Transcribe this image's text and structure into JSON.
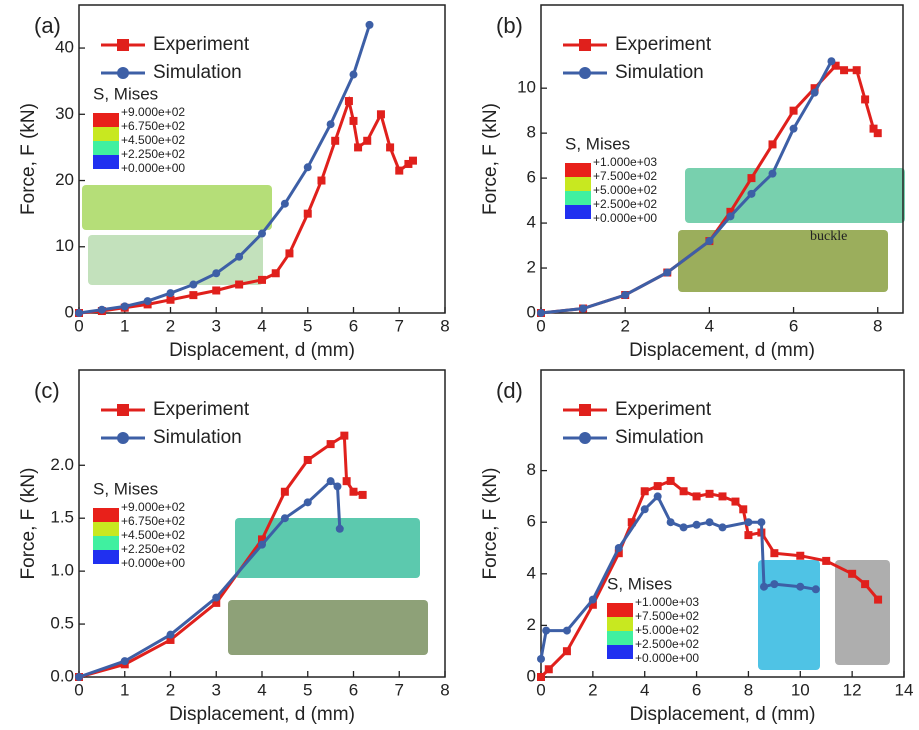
{
  "chart_data": [
    {
      "type": "line",
      "title": "(a)",
      "xlabel": "Displacement, d (mm)",
      "ylabel": "Force, F (kN)",
      "xlim": [
        0,
        8
      ],
      "xticks": [
        0,
        1,
        2,
        3,
        4,
        5,
        6,
        7,
        8
      ],
      "ylim": [
        0,
        46.5
      ],
      "yticks": [
        0,
        10,
        20,
        30,
        40
      ],
      "series": [
        {
          "name": "Experiment",
          "color": "#e0201c",
          "marker": "square",
          "x": [
            0,
            0.5,
            1,
            1.5,
            2,
            2.5,
            3,
            3.5,
            4,
            4.3,
            4.6,
            5,
            5.3,
            5.6,
            5.9,
            6.0,
            6.1,
            6.3,
            6.6,
            6.8,
            7.0,
            7.2,
            7.3
          ],
          "values": [
            0,
            0.3,
            0.8,
            1.3,
            2,
            2.7,
            3.4,
            4.3,
            5,
            6,
            9,
            15,
            20,
            26,
            32,
            29,
            25,
            26,
            30,
            25,
            21.5,
            22.5,
            23
          ]
        },
        {
          "name": "Simulation",
          "color": "#3d5fa6",
          "marker": "circle",
          "x": [
            0,
            0.5,
            1,
            1.5,
            2,
            2.5,
            3,
            3.5,
            4,
            4.5,
            5,
            5.5,
            6,
            6.35
          ],
          "values": [
            0,
            0.5,
            1,
            1.8,
            3,
            4.3,
            6,
            8.5,
            12,
            16.5,
            22,
            28.5,
            36,
            43.5
          ]
        }
      ],
      "inset": {
        "title": "S, Mises",
        "labels": [
          "+9.000e+02",
          "+6.750e+02",
          "+4.500e+02",
          "+2.250e+02",
          "+0.000e+00"
        ],
        "colors": [
          "#e8201a",
          "#c8e820",
          "#40f0a0",
          "#2030f0"
        ]
      }
    },
    {
      "type": "line",
      "title": "(b)",
      "xlabel": "Displacement, d (mm)",
      "ylabel": "Force, F (kN)",
      "xlim": [
        0,
        8.6
      ],
      "xticks": [
        0,
        2,
        4,
        6,
        8
      ],
      "ylim": [
        0,
        13.7
      ],
      "yticks": [
        0,
        2,
        4,
        6,
        8,
        10
      ],
      "series": [
        {
          "name": "Experiment",
          "color": "#e0201c",
          "marker": "square",
          "x": [
            0,
            1,
            2,
            3,
            4,
            4.5,
            5,
            5.5,
            6,
            6.5,
            7,
            7.2,
            7.5,
            7.7,
            7.9,
            8.0
          ],
          "values": [
            0,
            0.2,
            0.8,
            1.8,
            3.2,
            4.5,
            6,
            7.5,
            9,
            10,
            11,
            10.8,
            10.8,
            9.5,
            8.2,
            8
          ]
        },
        {
          "name": "Simulation",
          "color": "#3d5fa6",
          "marker": "circle",
          "x": [
            0,
            1,
            2,
            3,
            4,
            4.5,
            5,
            5.5,
            6,
            6.5,
            6.9
          ],
          "values": [
            0,
            0.2,
            0.8,
            1.8,
            3.2,
            4.3,
            5.3,
            6.2,
            8.2,
            9.8,
            11.2
          ]
        }
      ],
      "inset": {
        "title": "S, Mises",
        "labels": [
          "+1.000e+03",
          "+7.500e+02",
          "+5.000e+02",
          "+2.500e+02",
          "+0.000e+00"
        ],
        "colors": [
          "#e8201a",
          "#c8e820",
          "#40f0a0",
          "#2030f0"
        ]
      },
      "annotation": "buckle"
    },
    {
      "type": "line",
      "title": "(c)",
      "xlabel": "Displacement, d (mm)",
      "ylabel": "Force, F (kN)",
      "xlim": [
        0,
        8
      ],
      "xticks": [
        0,
        1,
        2,
        3,
        4,
        5,
        6,
        7,
        8
      ],
      "ylim": [
        0,
        2.9
      ],
      "yticks": [
        {
          "value": 0,
          "label": "0.0"
        },
        0.5,
        {
          "value": 1,
          "label": "1.0"
        },
        1.5,
        {
          "value": 2,
          "label": "2.0"
        }
      ],
      "series": [
        {
          "name": "Experiment",
          "color": "#e0201c",
          "marker": "square",
          "x": [
            0,
            1,
            2,
            3,
            4,
            4.5,
            5,
            5.5,
            5.8,
            5.85,
            6,
            6.2
          ],
          "values": [
            0,
            0.12,
            0.35,
            0.7,
            1.3,
            1.75,
            2.05,
            2.2,
            2.28,
            1.85,
            1.75,
            1.72
          ]
        },
        {
          "name": "Simulation",
          "color": "#3d5fa6",
          "marker": "circle",
          "x": [
            0,
            1,
            2,
            3,
            4,
            4.5,
            5,
            5.5,
            5.65,
            5.7
          ],
          "values": [
            0,
            0.15,
            0.4,
            0.75,
            1.25,
            1.5,
            1.65,
            1.85,
            1.8,
            1.4
          ]
        }
      ],
      "inset": {
        "title": "S, Mises",
        "labels": [
          "+9.000e+02",
          "+6.750e+02",
          "+4.500e+02",
          "+2.250e+02",
          "+0.000e+00"
        ],
        "colors": [
          "#e8201a",
          "#c8e820",
          "#40f0a0",
          "#2030f0"
        ]
      }
    },
    {
      "type": "line",
      "title": "(d)",
      "xlabel": "Displacement, d (mm)",
      "ylabel": "Force, F (kN)",
      "xlim": [
        0,
        14
      ],
      "xticks": [
        0,
        2,
        4,
        6,
        8,
        10,
        12,
        14
      ],
      "ylim": [
        0,
        11.9
      ],
      "yticks": [
        0,
        2,
        4,
        6,
        8
      ],
      "series": [
        {
          "name": "Experiment",
          "color": "#e0201c",
          "marker": "square",
          "x": [
            0,
            0.3,
            1,
            2,
            3,
            3.5,
            4,
            4.5,
            5,
            5.5,
            6,
            6.5,
            7,
            7.5,
            7.8,
            8,
            8.5,
            9,
            10,
            11,
            12,
            12.5,
            13
          ],
          "values": [
            0,
            0.3,
            1,
            2.8,
            4.8,
            6,
            7.2,
            7.4,
            7.6,
            7.2,
            7,
            7.1,
            7,
            6.8,
            6.5,
            5.5,
            5.6,
            4.8,
            4.7,
            4.5,
            4,
            3.6,
            3
          ]
        },
        {
          "name": "Simulation",
          "color": "#3d5fa6",
          "marker": "circle",
          "x": [
            0,
            0.2,
            1,
            2,
            3,
            4,
            4.5,
            5,
            5.5,
            6,
            6.5,
            7,
            8,
            8.5,
            8.6,
            9,
            10,
            10.6
          ],
          "values": [
            0.7,
            1.8,
            1.8,
            3,
            5,
            6.5,
            7,
            6,
            5.8,
            5.9,
            6,
            5.8,
            6,
            6,
            3.5,
            3.6,
            3.5,
            3.4
          ]
        }
      ],
      "inset": {
        "title": "S, Mises",
        "labels": [
          "+1.000e+03",
          "+7.500e+02",
          "+5.000e+02",
          "+2.500e+02",
          "+0.000e+00"
        ],
        "colors": [
          "#e8201a",
          "#c8e820",
          "#40f0a0",
          "#2030f0"
        ]
      }
    }
  ]
}
